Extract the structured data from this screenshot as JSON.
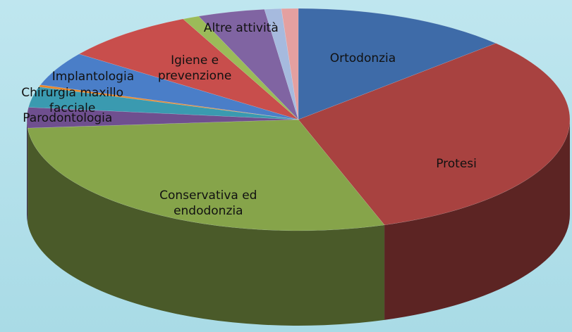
{
  "chart_data": {
    "type": "pie3d",
    "categories": [
      "Ortodonzia",
      "Protesi",
      "Conservativa ed endodonzia",
      "Parodontologia",
      "Chirurgia maxillo facciale",
      null,
      "Implantologia",
      "Igiene e prevenzione",
      null,
      "Altre attività",
      null,
      null
    ],
    "values": [
      13,
      32,
      29,
      3,
      3,
      0.3,
      5,
      8,
      1,
      4,
      1,
      1
    ],
    "colors": [
      "#3e6ba8",
      "#a84240",
      "#86a44a",
      "#6f4f8f",
      "#3a9ab0",
      "#e8862a",
      "#4a7ec8",
      "#c84e4c",
      "#9bbb59",
      "#8064a2",
      "#a6badE",
      "#e4a0a0"
    ]
  }
}
